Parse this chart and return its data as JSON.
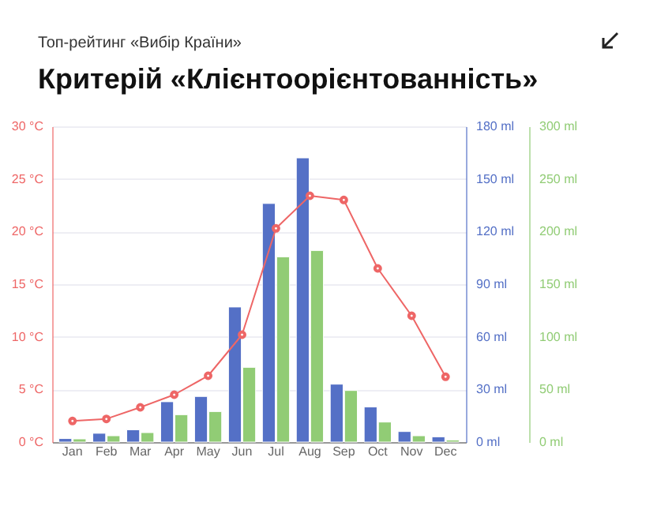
{
  "chart_data": {
    "type": "bar",
    "subtitle": "Топ-рейтинг «Вибір Країни»",
    "title": "Критерій «Клієнтоорієнтованність»",
    "categories": [
      "Jan",
      "Feb",
      "Mar",
      "Apr",
      "May",
      "Jun",
      "Jul",
      "Aug",
      "Sep",
      "Oct",
      "Nov",
      "Dec"
    ],
    "series": [
      {
        "axis": "y2",
        "color": "#5470c6",
        "values": [
          2,
          5,
          7,
          23,
          26,
          77,
          136,
          162,
          33,
          20,
          6,
          3
        ]
      },
      {
        "axis": "y3",
        "color": "#91cc75",
        "values": [
          3,
          6,
          9,
          26,
          29,
          71,
          176,
          182,
          49,
          19,
          6,
          2
        ]
      },
      {
        "type": "line",
        "axis": "y",
        "color": "#ee6666",
        "marker": "circle",
        "values": [
          2.0,
          2.2,
          3.3,
          4.5,
          6.3,
          10.2,
          20.3,
          23.4,
          23.0,
          16.5,
          12.0,
          6.2
        ]
      }
    ],
    "ylim": [
      0,
      30
    ],
    "yticks": [
      {
        "value": 0,
        "label": "0 °C"
      },
      {
        "value": 5,
        "label": "5 °C"
      },
      {
        "value": 10,
        "label": "10 °C"
      },
      {
        "value": 15,
        "label": "15 °C"
      },
      {
        "value": 20,
        "label": "20 °C"
      },
      {
        "value": 25,
        "label": "25 °C"
      },
      {
        "value": 30,
        "label": "30 °C"
      }
    ],
    "y2lim": [
      0,
      180
    ],
    "y2ticks": [
      {
        "value": 0,
        "label": "0 ml"
      },
      {
        "value": 30,
        "label": "30 ml"
      },
      {
        "value": 60,
        "label": "60 ml"
      },
      {
        "value": 90,
        "label": "90 ml"
      },
      {
        "value": 120,
        "label": "120 ml"
      },
      {
        "value": 150,
        "label": "150 ml"
      },
      {
        "value": 180,
        "label": "180 ml"
      }
    ],
    "y3lim": [
      0,
      300
    ],
    "y3ticks": [
      {
        "value": 0,
        "label": "0 ml"
      },
      {
        "value": 50,
        "label": "50 ml"
      },
      {
        "value": 100,
        "label": "100 ml"
      },
      {
        "value": 150,
        "label": "150 ml"
      },
      {
        "value": 200,
        "label": "200 ml"
      },
      {
        "value": 250,
        "label": "250 ml"
      },
      {
        "value": 300,
        "label": "300 ml"
      }
    ],
    "grid": "y"
  }
}
